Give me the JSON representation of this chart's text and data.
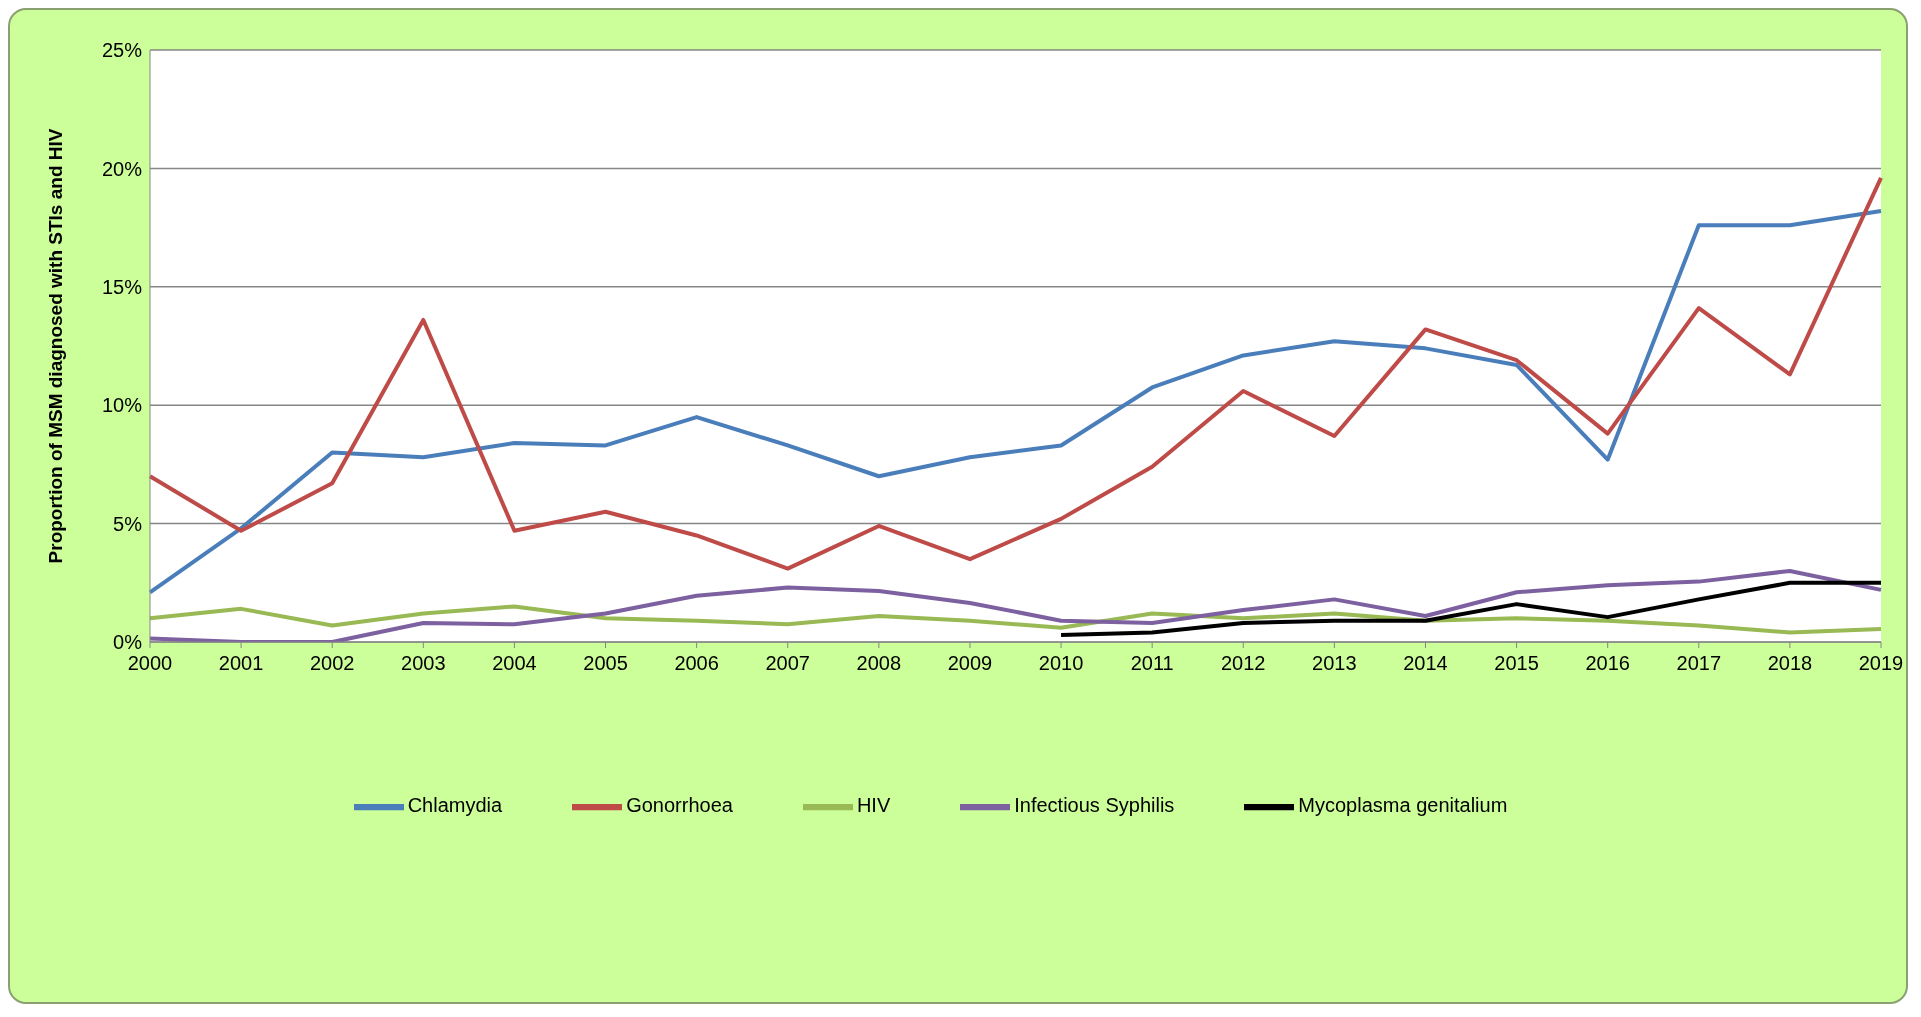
{
  "chart_data": {
    "type": "line",
    "ylabel": "Proportion of MSM diagnosed with STIs and HIV",
    "categories": [
      "2000",
      "2001",
      "2002",
      "2003",
      "2004",
      "2005",
      "2006",
      "2007",
      "2008",
      "2009",
      "2010",
      "2011",
      "2012",
      "2013",
      "2014",
      "2015",
      "2016",
      "2017",
      "2018",
      "2019"
    ],
    "series": [
      {
        "name": "Chlamydia",
        "color": "#4a7ebb",
        "values": [
          2.1,
          4.8,
          8.0,
          7.8,
          8.4,
          8.3,
          9.5,
          8.3,
          7.0,
          7.8,
          8.3,
          10.75,
          12.1,
          12.7,
          12.4,
          11.7,
          7.7,
          17.6,
          17.6,
          18.2
        ]
      },
      {
        "name": "Gonorrhoea",
        "color": "#be4b48",
        "values": [
          7.0,
          4.7,
          6.7,
          13.6,
          4.7,
          5.5,
          4.5,
          3.1,
          4.9,
          3.5,
          5.2,
          7.4,
          10.6,
          8.7,
          13.2,
          11.9,
          8.8,
          14.1,
          11.3,
          19.6
        ]
      },
      {
        "name": "HIV",
        "color": "#98b954",
        "values": [
          1.0,
          1.4,
          0.7,
          1.2,
          1.5,
          1.0,
          0.9,
          0.75,
          1.1,
          0.9,
          0.6,
          1.2,
          1.0,
          1.2,
          0.9,
          1.0,
          0.9,
          0.7,
          0.4,
          0.55
        ]
      },
      {
        "name": "Infectious Syphilis",
        "color": "#7d60a0",
        "values": [
          0.15,
          0,
          0,
          0.8,
          0.75,
          1.2,
          1.95,
          2.3,
          2.15,
          1.65,
          0.9,
          0.8,
          1.35,
          1.8,
          1.1,
          2.1,
          2.4,
          2.55,
          3.0,
          2.2
        ]
      },
      {
        "name": "Mycoplasma genitalium",
        "color": "#000000",
        "values": [
          null,
          null,
          null,
          null,
          null,
          null,
          null,
          null,
          null,
          null,
          0.3,
          0.4,
          0.8,
          0.9,
          0.9,
          1.6,
          1.05,
          1.8,
          2.5,
          2.5
        ]
      }
    ],
    "ylim": [
      0,
      25
    ],
    "yticks": [
      {
        "value": 0,
        "label": "0%"
      },
      {
        "value": 5,
        "label": "5%"
      },
      {
        "value": 10,
        "label": "10%"
      },
      {
        "value": 15,
        "label": "15%"
      },
      {
        "value": 20,
        "label": "20%"
      },
      {
        "value": 25,
        "label": "25%"
      }
    ],
    "grid": "y",
    "legend": "bottom",
    "marker": "none",
    "line_style": "solid"
  }
}
